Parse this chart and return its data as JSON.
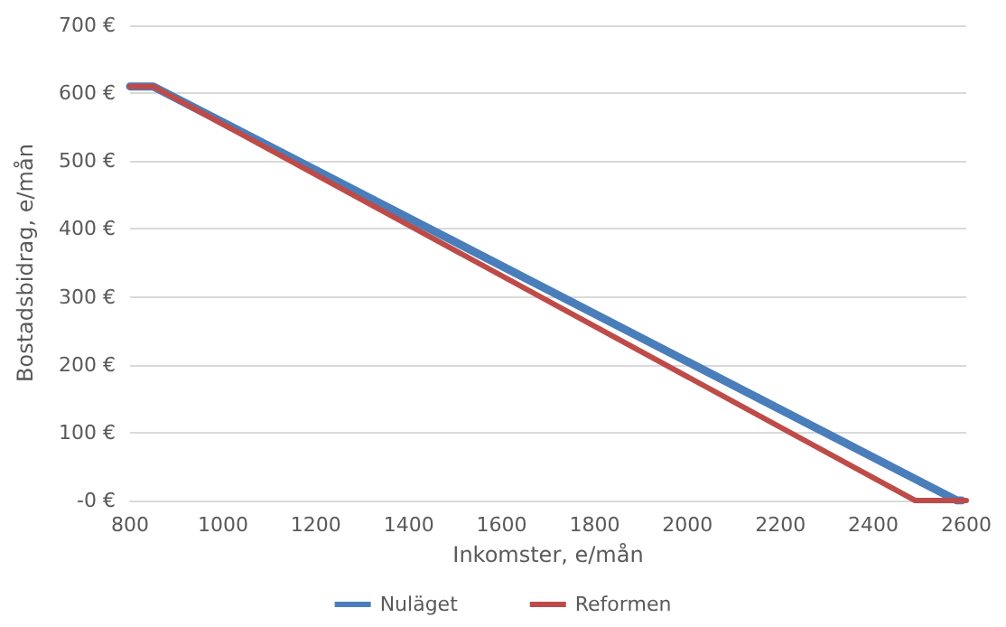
{
  "chart_data": {
    "type": "line",
    "xlabel": "Inkomster, e/mån",
    "ylabel": "Bostadsbidrag, e/mån",
    "series": [
      {
        "name": "Nuläget",
        "color": "#4a7ebb",
        "x": [
          800,
          850,
          2580,
          2590
        ],
        "values": [
          610,
          610,
          0,
          0
        ]
      },
      {
        "name": "Reformen",
        "color": "#be4b48",
        "x": [
          800,
          850,
          2490,
          2600
        ],
        "values": [
          610,
          610,
          0,
          0
        ]
      }
    ],
    "xlim": [
      800,
      2600
    ],
    "xticks": [
      800,
      1000,
      1200,
      1400,
      1600,
      1800,
      2000,
      2200,
      2400,
      2600
    ],
    "ylim": [
      0,
      700
    ],
    "yticks": [
      {
        "value": 0,
        "label": "-0 €"
      },
      {
        "value": 100,
        "label": "100 €"
      },
      {
        "value": 200,
        "label": "200 €"
      },
      {
        "value": 300,
        "label": "300 €"
      },
      {
        "value": 400,
        "label": "400 €"
      },
      {
        "value": 500,
        "label": "500 €"
      },
      {
        "value": 600,
        "label": "600 €"
      },
      {
        "value": 700,
        "label": "700 €"
      }
    ],
    "grid": "y",
    "legend": "bottom",
    "marker": "none",
    "line_style": "solid"
  }
}
